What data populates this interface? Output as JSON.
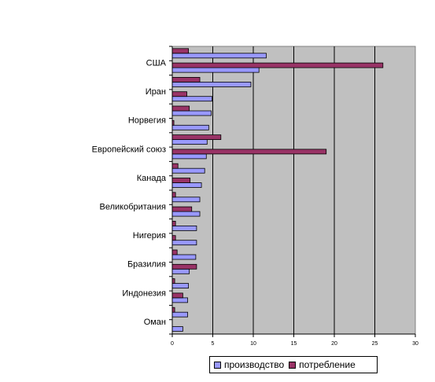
{
  "chart_data": {
    "type": "bar",
    "orientation": "horizontal",
    "categories": [
      "Оман",
      "",
      "Индонезия",
      "",
      "Бразилия",
      "",
      "Нигерия",
      "",
      "Великобритания",
      "",
      "Канада",
      "",
      "Европейский союз",
      "",
      "Норвегия",
      "",
      "Иран",
      "",
      "США",
      ""
    ],
    "series": [
      {
        "name": "производство",
        "color": "#9999ff",
        "values": [
          1.3,
          1.9,
          1.9,
          2.0,
          2.1,
          2.9,
          3.0,
          3.0,
          3.4,
          3.4,
          3.6,
          4.0,
          4.2,
          4.3,
          4.5,
          4.8,
          4.9,
          9.7,
          10.7,
          11.6
        ]
      },
      {
        "name": "потребление",
        "color": "#993366",
        "values": [
          0,
          0.3,
          1.3,
          0.3,
          3.0,
          0.6,
          0.4,
          0.4,
          2.4,
          0.4,
          2.2,
          0.7,
          19.0,
          6.0,
          0.2,
          2.1,
          1.8,
          3.4,
          26.0,
          2.0
        ]
      }
    ],
    "xlim": [
      0,
      30
    ],
    "xticks": [
      "0",
      "5",
      "10",
      "15",
      "20",
      "25",
      "30"
    ],
    "grid": true,
    "legend_position": "bottom"
  },
  "colors": {
    "plot_bg": "#c0c0c0",
    "grid": "#000000"
  }
}
